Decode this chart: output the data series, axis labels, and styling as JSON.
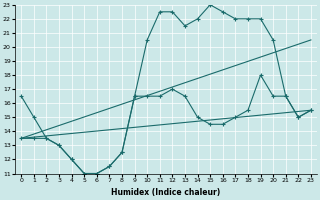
{
  "xlabel": "Humidex (Indice chaleur)",
  "xlim": [
    -0.5,
    23.5
  ],
  "ylim": [
    11,
    23
  ],
  "yticks": [
    11,
    12,
    13,
    14,
    15,
    16,
    17,
    18,
    19,
    20,
    21,
    22,
    23
  ],
  "xticks": [
    0,
    1,
    2,
    3,
    4,
    5,
    6,
    7,
    8,
    9,
    10,
    11,
    12,
    13,
    14,
    15,
    16,
    17,
    18,
    19,
    20,
    21,
    22,
    23
  ],
  "bg_color": "#cce8e8",
  "line_color": "#1a6b6b",
  "line1_x": [
    0,
    1,
    2,
    3,
    4,
    5,
    6,
    7,
    8,
    9,
    10,
    11,
    12,
    13,
    14,
    15,
    16,
    17,
    18,
    19,
    20,
    21,
    22,
    23
  ],
  "line1_y": [
    16.5,
    15.0,
    13.5,
    13.0,
    12.0,
    11.0,
    11.0,
    11.5,
    12.5,
    16.5,
    20.5,
    22.5,
    22.5,
    21.5,
    22.0,
    23.0,
    22.5,
    22.0,
    22.0,
    22.0,
    20.5,
    16.5,
    15.0,
    15.5
  ],
  "line2_x": [
    0,
    1,
    2,
    3,
    4,
    5,
    6,
    7,
    8,
    9,
    10,
    11,
    12,
    13,
    14,
    15,
    16,
    17,
    18,
    19,
    20,
    21,
    22,
    23
  ],
  "line2_y": [
    13.5,
    13.5,
    13.5,
    13.0,
    12.0,
    11.0,
    11.0,
    11.5,
    12.5,
    16.5,
    16.5,
    16.5,
    17.0,
    16.5,
    15.0,
    14.5,
    14.5,
    15.0,
    15.5,
    18.0,
    16.5,
    16.5,
    15.0,
    15.5
  ],
  "line3_x": [
    0,
    23
  ],
  "line3_y": [
    13.5,
    20.5
  ],
  "line4_x": [
    0,
    23
  ],
  "line4_y": [
    13.5,
    15.5
  ]
}
